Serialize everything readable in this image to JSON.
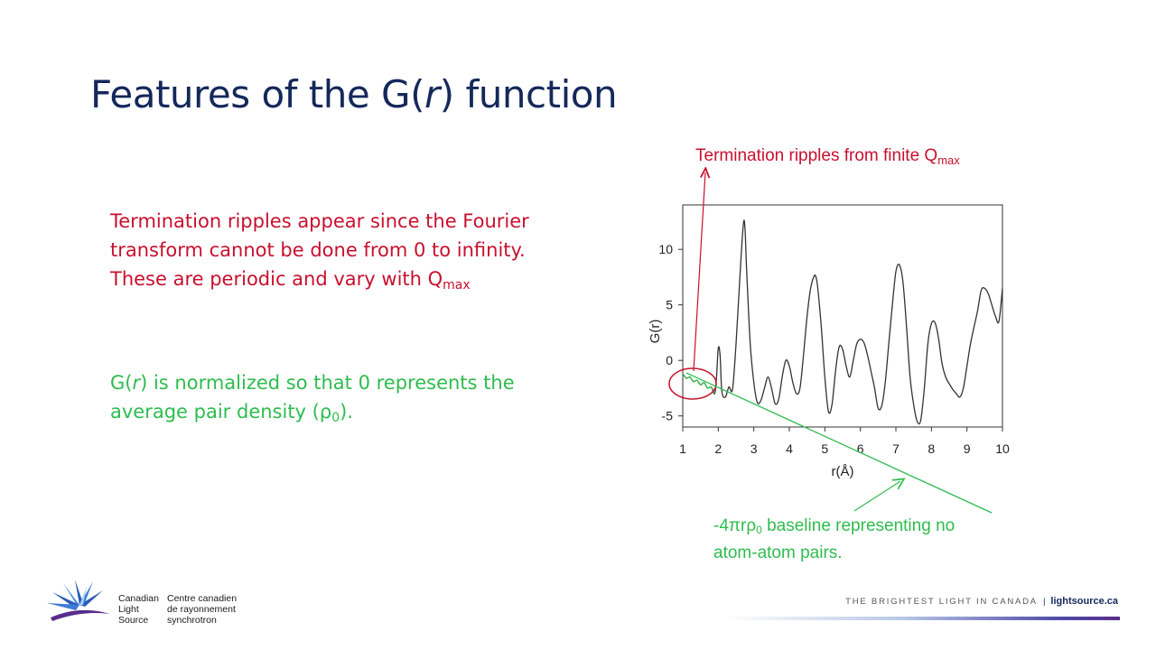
{
  "slide": {
    "title_pre": "Features of the G(",
    "title_it": "r",
    "title_post": ") function",
    "red_text_line1": "Termination ripples appear since the Fourier",
    "red_text_line2": "transform cannot be done from 0 to infinity.",
    "red_text_line3_pre": "These are periodic and vary with Q",
    "red_text_line3_sub": "max",
    "green_text_pre": "G(",
    "green_text_it": "r",
    "green_text_mid": ") is normalized so that 0 represents the",
    "green_text_line2_pre": "average pair density (ρ",
    "green_text_line2_sub": "0",
    "green_text_line2_post": ").",
    "annotation_red_pre": "Termination ripples from finite Q",
    "annotation_red_sub": "max",
    "annotation_green_pre": "-4πrρ",
    "annotation_green_sub": "0",
    "annotation_green_post": " baseline representing no",
    "annotation_green_line2": "atom-atom pairs."
  },
  "footer": {
    "org_en": [
      "Canadian",
      "Light",
      "Source"
    ],
    "org_fr": [
      "Centre canadien",
      "de rayonnement",
      "synchrotron"
    ],
    "tagline": "THE BRIGHTEST LIGHT IN CANADA",
    "separator": "|",
    "website": "lightsource.ca"
  },
  "colors": {
    "title": "#14285a",
    "red": "#c8102e",
    "green": "#2ebc4f",
    "curve": "#333333"
  },
  "chart_data": {
    "type": "line",
    "xlabel": "r(Å)",
    "ylabel": "G(r)",
    "xlim": [
      1,
      10
    ],
    "ylim": [
      -6,
      14
    ],
    "xticks": [
      1,
      2,
      3,
      4,
      5,
      6,
      7,
      8,
      9,
      10
    ],
    "yticks": [
      -5,
      0,
      5,
      10
    ],
    "grid": false,
    "series": [
      {
        "x": [
          1.0,
          1.1,
          1.2,
          1.3,
          1.4,
          1.5,
          1.6,
          1.7,
          1.8,
          1.9,
          1.95,
          2.0,
          2.05,
          2.1,
          2.2,
          2.3,
          2.4,
          2.5,
          2.6,
          2.7,
          2.75,
          2.8,
          2.9,
          3.0,
          3.1,
          3.2,
          3.3,
          3.4,
          3.5,
          3.6,
          3.7,
          3.8,
          3.9,
          4.0,
          4.1,
          4.2,
          4.3,
          4.4,
          4.5,
          4.6,
          4.7,
          4.75,
          4.8,
          4.9,
          5.0,
          5.1,
          5.2,
          5.3,
          5.4,
          5.5,
          5.6,
          5.7,
          5.8,
          5.9,
          6.0,
          6.1,
          6.2,
          6.3,
          6.4,
          6.5,
          6.6,
          6.7,
          6.8,
          6.9,
          7.0,
          7.1,
          7.2,
          7.3,
          7.4,
          7.5,
          7.6,
          7.7,
          7.8,
          7.9,
          8.0,
          8.1,
          8.2,
          8.3,
          8.4,
          8.5,
          8.6,
          8.7,
          8.8,
          8.9,
          9.0,
          9.1,
          9.2,
          9.3,
          9.4,
          9.5,
          9.6,
          9.7,
          9.8,
          9.9,
          10.0
        ],
        "y": [
          -1.2,
          -1.6,
          -1.5,
          -1.9,
          -1.8,
          -2.2,
          -2.0,
          -2.5,
          -2.4,
          -3.0,
          -1.5,
          1.1,
          0.5,
          -2.8,
          -3.3,
          -2.4,
          -2.6,
          1.5,
          7.0,
          12.1,
          12.0,
          8.0,
          1.5,
          -2.0,
          -3.8,
          -3.6,
          -2.5,
          -1.5,
          -2.5,
          -3.9,
          -3.5,
          -1.5,
          0.0,
          -0.5,
          -2.0,
          -3.0,
          -2.5,
          0.5,
          4.0,
          6.5,
          7.6,
          7.5,
          6.5,
          3.0,
          -1.5,
          -4.6,
          -4.0,
          -1.0,
          1.2,
          1.0,
          -0.5,
          -1.5,
          0.0,
          1.5,
          1.9,
          1.6,
          0.5,
          -1.0,
          -2.5,
          -4.3,
          -4.1,
          -2.0,
          1.5,
          5.0,
          8.0,
          8.6,
          7.0,
          3.0,
          -1.5,
          -4.0,
          -5.5,
          -5.4,
          -2.5,
          1.5,
          3.3,
          3.4,
          2.0,
          -0.3,
          -1.5,
          -2.1,
          -2.6,
          -3.0,
          -3.3,
          -2.5,
          -0.5,
          1.5,
          3.0,
          4.5,
          6.3,
          6.5,
          6.0,
          5.0,
          4.0,
          3.5,
          6.5
        ]
      }
    ]
  }
}
